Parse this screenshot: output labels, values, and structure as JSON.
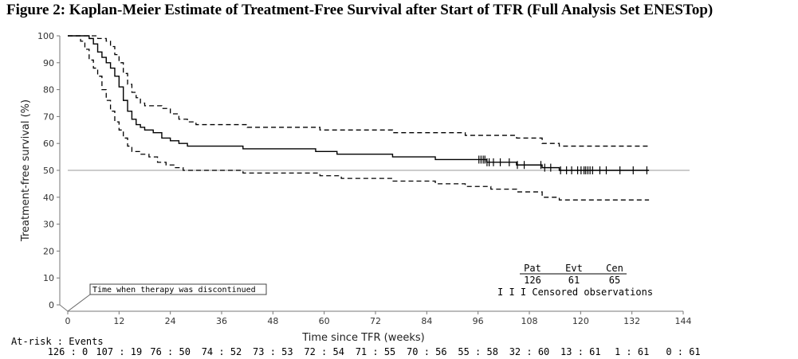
{
  "title": "Figure 2: Kaplan-Meier Estimate of Treatment-Free Survival after Start of TFR (Full Analysis Set ENESTop)",
  "chart_data": {
    "type": "line",
    "xlabel": "Time since TFR (weeks)",
    "ylabel": "Treatment-free survival (%)",
    "xlim": [
      0,
      144
    ],
    "ylim": [
      0,
      100
    ],
    "x_ticks": [
      "0",
      "12",
      "24",
      "36",
      "48",
      "60",
      "72",
      "84",
      "96",
      "108",
      "120",
      "132",
      "144"
    ],
    "y_ticks": [
      "0",
      "10",
      "20",
      "30",
      "40",
      "50",
      "60",
      "70",
      "80",
      "90",
      "100"
    ],
    "reference_line_y": 50,
    "annotation": "Time when therapy was discontinued",
    "series": [
      {
        "style": "solid",
        "points": [
          [
            0,
            100
          ],
          [
            4,
            100
          ],
          [
            5,
            99
          ],
          [
            6,
            97
          ],
          [
            7,
            94
          ],
          [
            8,
            92
          ],
          [
            9,
            90
          ],
          [
            10,
            88
          ],
          [
            11,
            85
          ],
          [
            12,
            81
          ],
          [
            13,
            76
          ],
          [
            14,
            72
          ],
          [
            15,
            69
          ],
          [
            16,
            67
          ],
          [
            17,
            66
          ],
          [
            18,
            65
          ],
          [
            20,
            64
          ],
          [
            22,
            62
          ],
          [
            24,
            61
          ],
          [
            26,
            60
          ],
          [
            28,
            59
          ],
          [
            30,
            59
          ],
          [
            40,
            59
          ],
          [
            41,
            58
          ],
          [
            55,
            58
          ],
          [
            58,
            57
          ],
          [
            62,
            57
          ],
          [
            63,
            56
          ],
          [
            75,
            56
          ],
          [
            76,
            55
          ],
          [
            85,
            55
          ],
          [
            86,
            54
          ],
          [
            92,
            54
          ],
          [
            93,
            54
          ],
          [
            97,
            54
          ],
          [
            98,
            53
          ],
          [
            104,
            53
          ],
          [
            105,
            52
          ],
          [
            110,
            52
          ],
          [
            111,
            51
          ],
          [
            114,
            51
          ],
          [
            115,
            50
          ],
          [
            136,
            50
          ]
        ]
      },
      {
        "style": "dashed",
        "points": [
          [
            0,
            100
          ],
          [
            6,
            100
          ],
          [
            7,
            99
          ],
          [
            9,
            98
          ],
          [
            10,
            96
          ],
          [
            11,
            93
          ],
          [
            12,
            90
          ],
          [
            13,
            86
          ],
          [
            14,
            82
          ],
          [
            15,
            79
          ],
          [
            16,
            77
          ],
          [
            17,
            75
          ],
          [
            18,
            74
          ],
          [
            22,
            73
          ],
          [
            24,
            71
          ],
          [
            26,
            69
          ],
          [
            28,
            68
          ],
          [
            30,
            67
          ],
          [
            41,
            67
          ],
          [
            42,
            66
          ],
          [
            58,
            66
          ],
          [
            59,
            65
          ],
          [
            75,
            65
          ],
          [
            76,
            64
          ],
          [
            92,
            64
          ],
          [
            93,
            63
          ],
          [
            104,
            63
          ],
          [
            105,
            62
          ],
          [
            110,
            62
          ],
          [
            111,
            60
          ],
          [
            115,
            59
          ],
          [
            136,
            59
          ]
        ]
      },
      {
        "style": "dashed",
        "points": [
          [
            0,
            100
          ],
          [
            2,
            100
          ],
          [
            3,
            98
          ],
          [
            4,
            95
          ],
          [
            5,
            91
          ],
          [
            6,
            88
          ],
          [
            7,
            85
          ],
          [
            8,
            80
          ],
          [
            9,
            76
          ],
          [
            10,
            72
          ],
          [
            11,
            68
          ],
          [
            12,
            65
          ],
          [
            13,
            62
          ],
          [
            14,
            59
          ],
          [
            15,
            57
          ],
          [
            17,
            56
          ],
          [
            19,
            55
          ],
          [
            21,
            53
          ],
          [
            23,
            52
          ],
          [
            25,
            51
          ],
          [
            27,
            50
          ],
          [
            30,
            50
          ],
          [
            40,
            50
          ],
          [
            41,
            49
          ],
          [
            58,
            49
          ],
          [
            59,
            48
          ],
          [
            63,
            48
          ],
          [
            64,
            47
          ],
          [
            75,
            47
          ],
          [
            76,
            46
          ],
          [
            85,
            46
          ],
          [
            86,
            45
          ],
          [
            92,
            45
          ],
          [
            93,
            44
          ],
          [
            98,
            44
          ],
          [
            99,
            43
          ],
          [
            104,
            43
          ],
          [
            105,
            42
          ],
          [
            110,
            42
          ],
          [
            111,
            40
          ],
          [
            114,
            40
          ],
          [
            115,
            39
          ],
          [
            136,
            39
          ]
        ]
      }
    ],
    "censor_marks_x": [
      96.2,
      96.7,
      97.2,
      97.6,
      98.1,
      98.6,
      99.6,
      101.2,
      103.3,
      105.2,
      106.8,
      110.7,
      111.6,
      113.0,
      115.3,
      116.7,
      117.9,
      119.3,
      120.1,
      120.8,
      121.2,
      121.7,
      122.2,
      122.8,
      124.5,
      126.0,
      129.2,
      132.3,
      135.5
    ],
    "summary_table": {
      "headers": [
        "Pat",
        "Evt",
        "Cen"
      ],
      "values": [
        "126",
        "61",
        "65"
      ],
      "legend": "I I I Censored observations"
    },
    "at_risk": {
      "label": "At-risk : Events",
      "entries": [
        "126 : 0",
        "107 : 19",
        "76 : 50",
        "74 : 52",
        "73 : 53",
        "72 : 54",
        "71 : 55",
        "70 : 56",
        "55 : 58",
        "32 : 60",
        "13 : 61",
        "1 : 61",
        "0 : 61"
      ]
    }
  }
}
